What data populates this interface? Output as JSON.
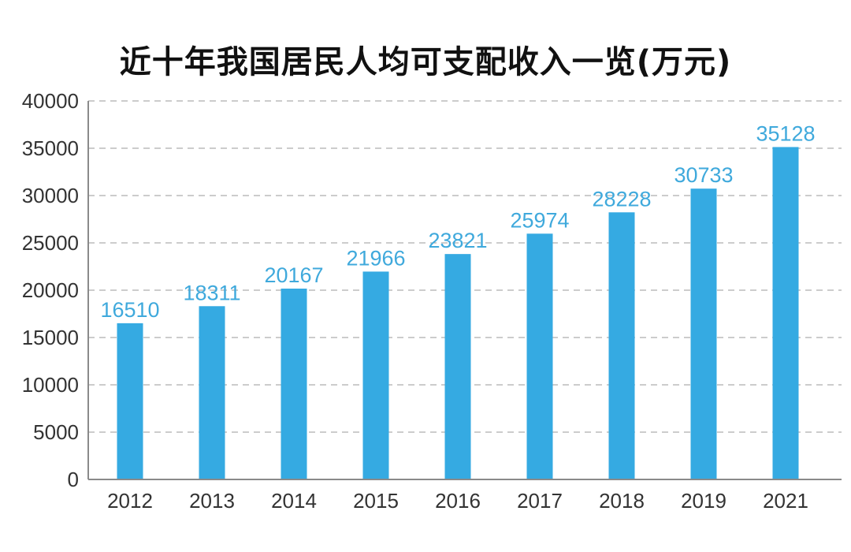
{
  "chart_data": {
    "type": "bar",
    "title": "近十年我国居民人均可支配收入一览(万元)",
    "xlabel": "",
    "ylabel": "",
    "categories": [
      "2012",
      "2013",
      "2014",
      "2015",
      "2016",
      "2017",
      "2018",
      "2019",
      "2021"
    ],
    "values": [
      16510,
      18311,
      20167,
      21966,
      23821,
      25974,
      28228,
      30733,
      35128
    ],
    "ylim": [
      0,
      40000
    ],
    "yticks": [
      0,
      5000,
      10000,
      15000,
      20000,
      25000,
      30000,
      35000,
      40000
    ],
    "grid": true,
    "data_labels": true,
    "bar_color": "#35aae2",
    "label_color": "#3fa9dc"
  }
}
